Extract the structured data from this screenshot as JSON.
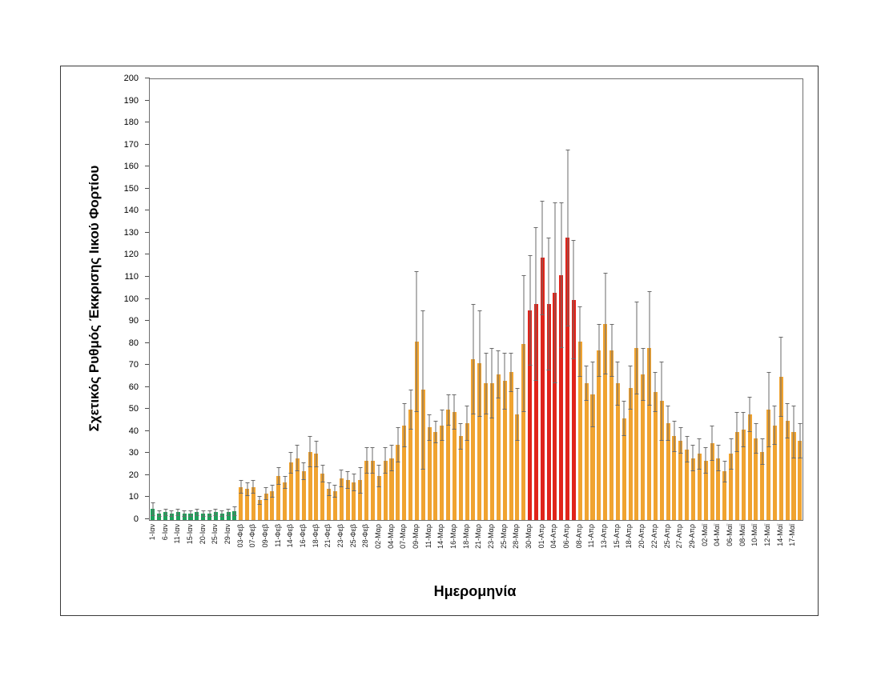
{
  "figure": {
    "background": "#ffffff",
    "frame_border_color": "#3a3a3a"
  },
  "chart_data": {
    "type": "bar",
    "title": "",
    "xlabel": "Ημερομηνία",
    "ylabel": "Σχετικός Ρυθμός Έκκρισης Ιικού Φορτίου",
    "ylim": [
      0,
      200
    ],
    "ytick_step": 10,
    "grid": false,
    "legend": "none",
    "error_bars": "symmetric, gray with caps",
    "tick_labels_every": 2,
    "x_tick_labels": [
      "1-Ιαν",
      "6-Ιαν",
      "11-Ιαν",
      "15-Ιαν",
      "20-Ιαν",
      "25-Ιαν",
      "29-Ιαν",
      "03-Φεβ",
      "07-Φεβ",
      "09-Φεβ",
      "11-Φεβ",
      "14-Φεβ",
      "16-Φεβ",
      "18-Φεβ",
      "21-Φεβ",
      "23-Φεβ",
      "25-Φεβ",
      "28-Φεβ",
      "02-Μαρ",
      "04-Μαρ",
      "07-Μαρ",
      "09-Μαρ",
      "11-Μαρ",
      "14-Μαρ",
      "16-Μαρ",
      "18-Μαρ",
      "21-Μαρ",
      "23-Μαρ",
      "25-Μαρ",
      "28-Μαρ",
      "30-Μαρ",
      "01-Απρ",
      "04-Απρ",
      "06-Απρ",
      "08-Απρ",
      "11-Απρ",
      "13-Απρ",
      "15-Απρ",
      "18-Απρ",
      "20-Απρ",
      "22-Απρ",
      "25-Απρ",
      "27-Απρ",
      "29-Απρ",
      "02-Μαϊ",
      "04-Μαϊ",
      "06-Μαϊ",
      "08-Μαϊ",
      "10-Μαϊ",
      "12-Μαϊ",
      "14-Μαϊ",
      "17-Μαϊ"
    ],
    "values": [
      5,
      3,
      3.5,
      3,
      3.5,
      3,
      3,
      3.5,
      3,
      3,
      3.5,
      3,
      3.5,
      4,
      15,
      14,
      15,
      9,
      12,
      13,
      20,
      17,
      26,
      28,
      22,
      31,
      30,
      21,
      14,
      13,
      19,
      18,
      17,
      18,
      27,
      27,
      20,
      27,
      28,
      34,
      43,
      50,
      81,
      59,
      42,
      40,
      43,
      50,
      49,
      38,
      44,
      73,
      71,
      62,
      62,
      66,
      63,
      67,
      48,
      80,
      95,
      98,
      119,
      98,
      103,
      111,
      128,
      100,
      81,
      62,
      57,
      77,
      89,
      77,
      62,
      46,
      60,
      78,
      66,
      78,
      58,
      54,
      44,
      38,
      36,
      32,
      28,
      30,
      27,
      35,
      28,
      22,
      30,
      40,
      41,
      48,
      37,
      31,
      50,
      43,
      65,
      45,
      40,
      36
    ],
    "errors": [
      3,
      1.5,
      1.5,
      1.5,
      1.5,
      1.5,
      1.5,
      1.5,
      1.5,
      1.5,
      1.5,
      1.5,
      1.5,
      2,
      3,
      3,
      3,
      2,
      3,
      3,
      4,
      3,
      5,
      6,
      4,
      7,
      6,
      4,
      3,
      3,
      4,
      4,
      4,
      6,
      6,
      6,
      5,
      6,
      6,
      8,
      10,
      9,
      32,
      36,
      6,
      5,
      7,
      7,
      8,
      6,
      8,
      25,
      24,
      14,
      16,
      11,
      13,
      9,
      12,
      31,
      25,
      35,
      26,
      30,
      41,
      33,
      40,
      27,
      16,
      8,
      15,
      12,
      23,
      12,
      10,
      8,
      10,
      21,
      12,
      26,
      9,
      18,
      8,
      7,
      6,
      6,
      6,
      7,
      6,
      8,
      6,
      5,
      7,
      9,
      8,
      8,
      7,
      6,
      17,
      9,
      18,
      8,
      12,
      8
    ],
    "color_segments": [
      {
        "from": 0,
        "to": 13,
        "key": "green"
      },
      {
        "from": 14,
        "to": 59,
        "key": "orange"
      },
      {
        "from": 60,
        "to": 67,
        "key": "red"
      },
      {
        "from": 68,
        "to": 103,
        "key": "orange"
      }
    ],
    "colors": {
      "green": "#1ea15b",
      "orange": "#f0a330",
      "red": "#e0241b",
      "error_bar": "#6a6a6a",
      "axis": "#4d4d4d",
      "plot_border": "#6e6e6e"
    }
  }
}
